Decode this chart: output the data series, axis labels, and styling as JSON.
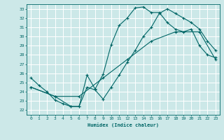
{
  "xlabel": "Humidex (Indice chaleur)",
  "bg_color": "#cce8e8",
  "grid_color": "#ffffff",
  "line_color": "#006666",
  "xlim": [
    -0.5,
    23.5
  ],
  "ylim": [
    21.5,
    33.5
  ],
  "xticks": [
    0,
    1,
    2,
    3,
    4,
    5,
    6,
    7,
    8,
    9,
    10,
    11,
    12,
    13,
    14,
    15,
    16,
    17,
    18,
    19,
    20,
    21,
    22,
    23
  ],
  "yticks": [
    22,
    23,
    24,
    25,
    26,
    27,
    28,
    29,
    30,
    31,
    32,
    33
  ],
  "line1_x": [
    0,
    1,
    2,
    3,
    4,
    5,
    6,
    7,
    8,
    9,
    10,
    11,
    12,
    13,
    14,
    15,
    16,
    17,
    18,
    19,
    20,
    21,
    22,
    23
  ],
  "line1_y": [
    25.5,
    24.7,
    24.0,
    23.1,
    22.7,
    22.4,
    22.4,
    25.8,
    24.3,
    25.9,
    29.1,
    31.2,
    32.0,
    33.1,
    33.2,
    32.6,
    32.6,
    31.5,
    30.8,
    30.5,
    30.8,
    29.0,
    28.0,
    27.7
  ],
  "line2_x": [
    0,
    3,
    6,
    9,
    12,
    15,
    18,
    21,
    23
  ],
  "line2_y": [
    24.5,
    23.5,
    23.5,
    25.5,
    27.5,
    29.5,
    30.5,
    30.5,
    27.5
  ],
  "line3_x": [
    0,
    3,
    5,
    6,
    7,
    8,
    9,
    10,
    11,
    12,
    13,
    14,
    15,
    16,
    17,
    18,
    19,
    20,
    21,
    22,
    23
  ],
  "line3_y": [
    24.5,
    23.5,
    22.4,
    22.4,
    24.5,
    24.2,
    23.2,
    24.5,
    25.8,
    27.2,
    28.5,
    30.0,
    31.0,
    32.5,
    33.0,
    32.5,
    32.0,
    31.5,
    30.8,
    29.5,
    28.5
  ]
}
